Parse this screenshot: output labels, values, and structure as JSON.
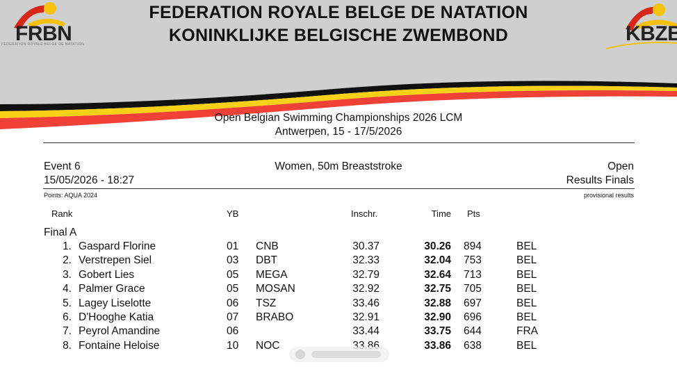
{
  "header": {
    "title_fr": "FEDERATION ROYALE BELGE DE NATATION",
    "title_nl": "KONINKLIJKE BELGISCHE ZWEMBOND",
    "logo_left": "FRBN",
    "logo_left_sub": "FEDERATION ROYALE BELGE DE NATATION",
    "logo_right": "KBZB",
    "colors": {
      "black": "#111111",
      "yellow": "#f7d117",
      "red": "#ef4135",
      "grey": "#cfcfcf"
    }
  },
  "meet": {
    "name": "Open Belgian Swimming Championships 2026 LCM",
    "place_dates": "Antwerpen, 15 - 17/5/2026"
  },
  "event": {
    "number": "Event 6",
    "datetime": "15/05/2026 - 18:27",
    "title": "Women, 50m Breaststroke",
    "category": "Open",
    "phase": "Results Finals",
    "points_note": "Points: AQUA 2024",
    "provisional": "provisional results"
  },
  "columns": {
    "rank": "Rank",
    "yb": "YB",
    "inschr": "Inschr.",
    "time": "Time",
    "pts": "Pts"
  },
  "heat": "Final A",
  "results": [
    {
      "rank": "1.",
      "name": "Gaspard Florine",
      "yb": "01",
      "club": "CNB",
      "entry": "30.37",
      "time": "30.26",
      "pts": "894",
      "nat": "BEL"
    },
    {
      "rank": "2.",
      "name": "Verstrepen Siel",
      "yb": "03",
      "club": "DBT",
      "entry": "32.33",
      "time": "32.04",
      "pts": "753",
      "nat": "BEL"
    },
    {
      "rank": "3.",
      "name": "Gobert Lies",
      "yb": "05",
      "club": "MEGA",
      "entry": "32.79",
      "time": "32.64",
      "pts": "713",
      "nat": "BEL"
    },
    {
      "rank": "4.",
      "name": "Palmer Grace",
      "yb": "05",
      "club": "MOSAN",
      "entry": "32.92",
      "time": "32.75",
      "pts": "705",
      "nat": "BEL"
    },
    {
      "rank": "5.",
      "name": "Lagey Liselotte",
      "yb": "06",
      "club": "TSZ",
      "entry": "33.46",
      "time": "32.88",
      "pts": "697",
      "nat": "BEL"
    },
    {
      "rank": "6.",
      "name": "D'Hooghe Katia",
      "yb": "07",
      "club": "BRABO",
      "entry": "32.91",
      "time": "32.90",
      "pts": "696",
      "nat": "BEL"
    },
    {
      "rank": "7.",
      "name": "Peyrol Amandine",
      "yb": "06",
      "club": "",
      "entry": "33.44",
      "time": "33.75",
      "pts": "644",
      "nat": "FRA"
    },
    {
      "rank": "8.",
      "name": "Fontaine Heloise",
      "yb": "10",
      "club": "NOC",
      "entry": "33.86",
      "time": "33.86",
      "pts": "638",
      "nat": "BEL"
    }
  ]
}
